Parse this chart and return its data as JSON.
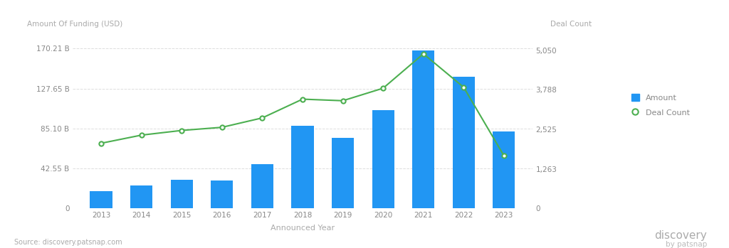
{
  "years": [
    2013,
    2014,
    2015,
    2016,
    2017,
    2018,
    2019,
    2020,
    2021,
    2022,
    2023
  ],
  "amount_b": [
    18.5,
    24.0,
    30.5,
    29.5,
    47.0,
    88.0,
    75.0,
    105.0,
    168.0,
    140.0,
    82.0
  ],
  "deal_count": [
    2080,
    2340,
    2490,
    2590,
    2890,
    3490,
    3440,
    3840,
    4940,
    3870,
    1680
  ],
  "bar_color": "#2196F3",
  "line_color": "#4CAF50",
  "ylabel_left": "Amount Of Funding (USD)",
  "ylabel_right": "Deal Count",
  "xlabel": "Announced Year",
  "yticks_left": [
    0,
    42.55,
    85.1,
    127.65,
    170.21
  ],
  "ytick_labels_left": [
    "0",
    "42.55 B",
    "85.10 B",
    "127.65 B",
    "170.21 B"
  ],
  "yticks_right": [
    0,
    1263,
    2525,
    3788,
    5050
  ],
  "ytick_labels_right": [
    "0",
    "1,263",
    "2,525",
    "3,788",
    "5,050"
  ],
  "ylim_left": [
    0,
    185
  ],
  "ylim_right": [
    0,
    5550
  ],
  "legend_amount": "Amount",
  "legend_deal": "Deal Count",
  "source_text": "Source: discovery.patsnap.com",
  "bg_color": "#FFFFFF",
  "grid_color": "#DDDDDD",
  "axis_label_color": "#AAAAAA",
  "tick_label_color": "#888888"
}
